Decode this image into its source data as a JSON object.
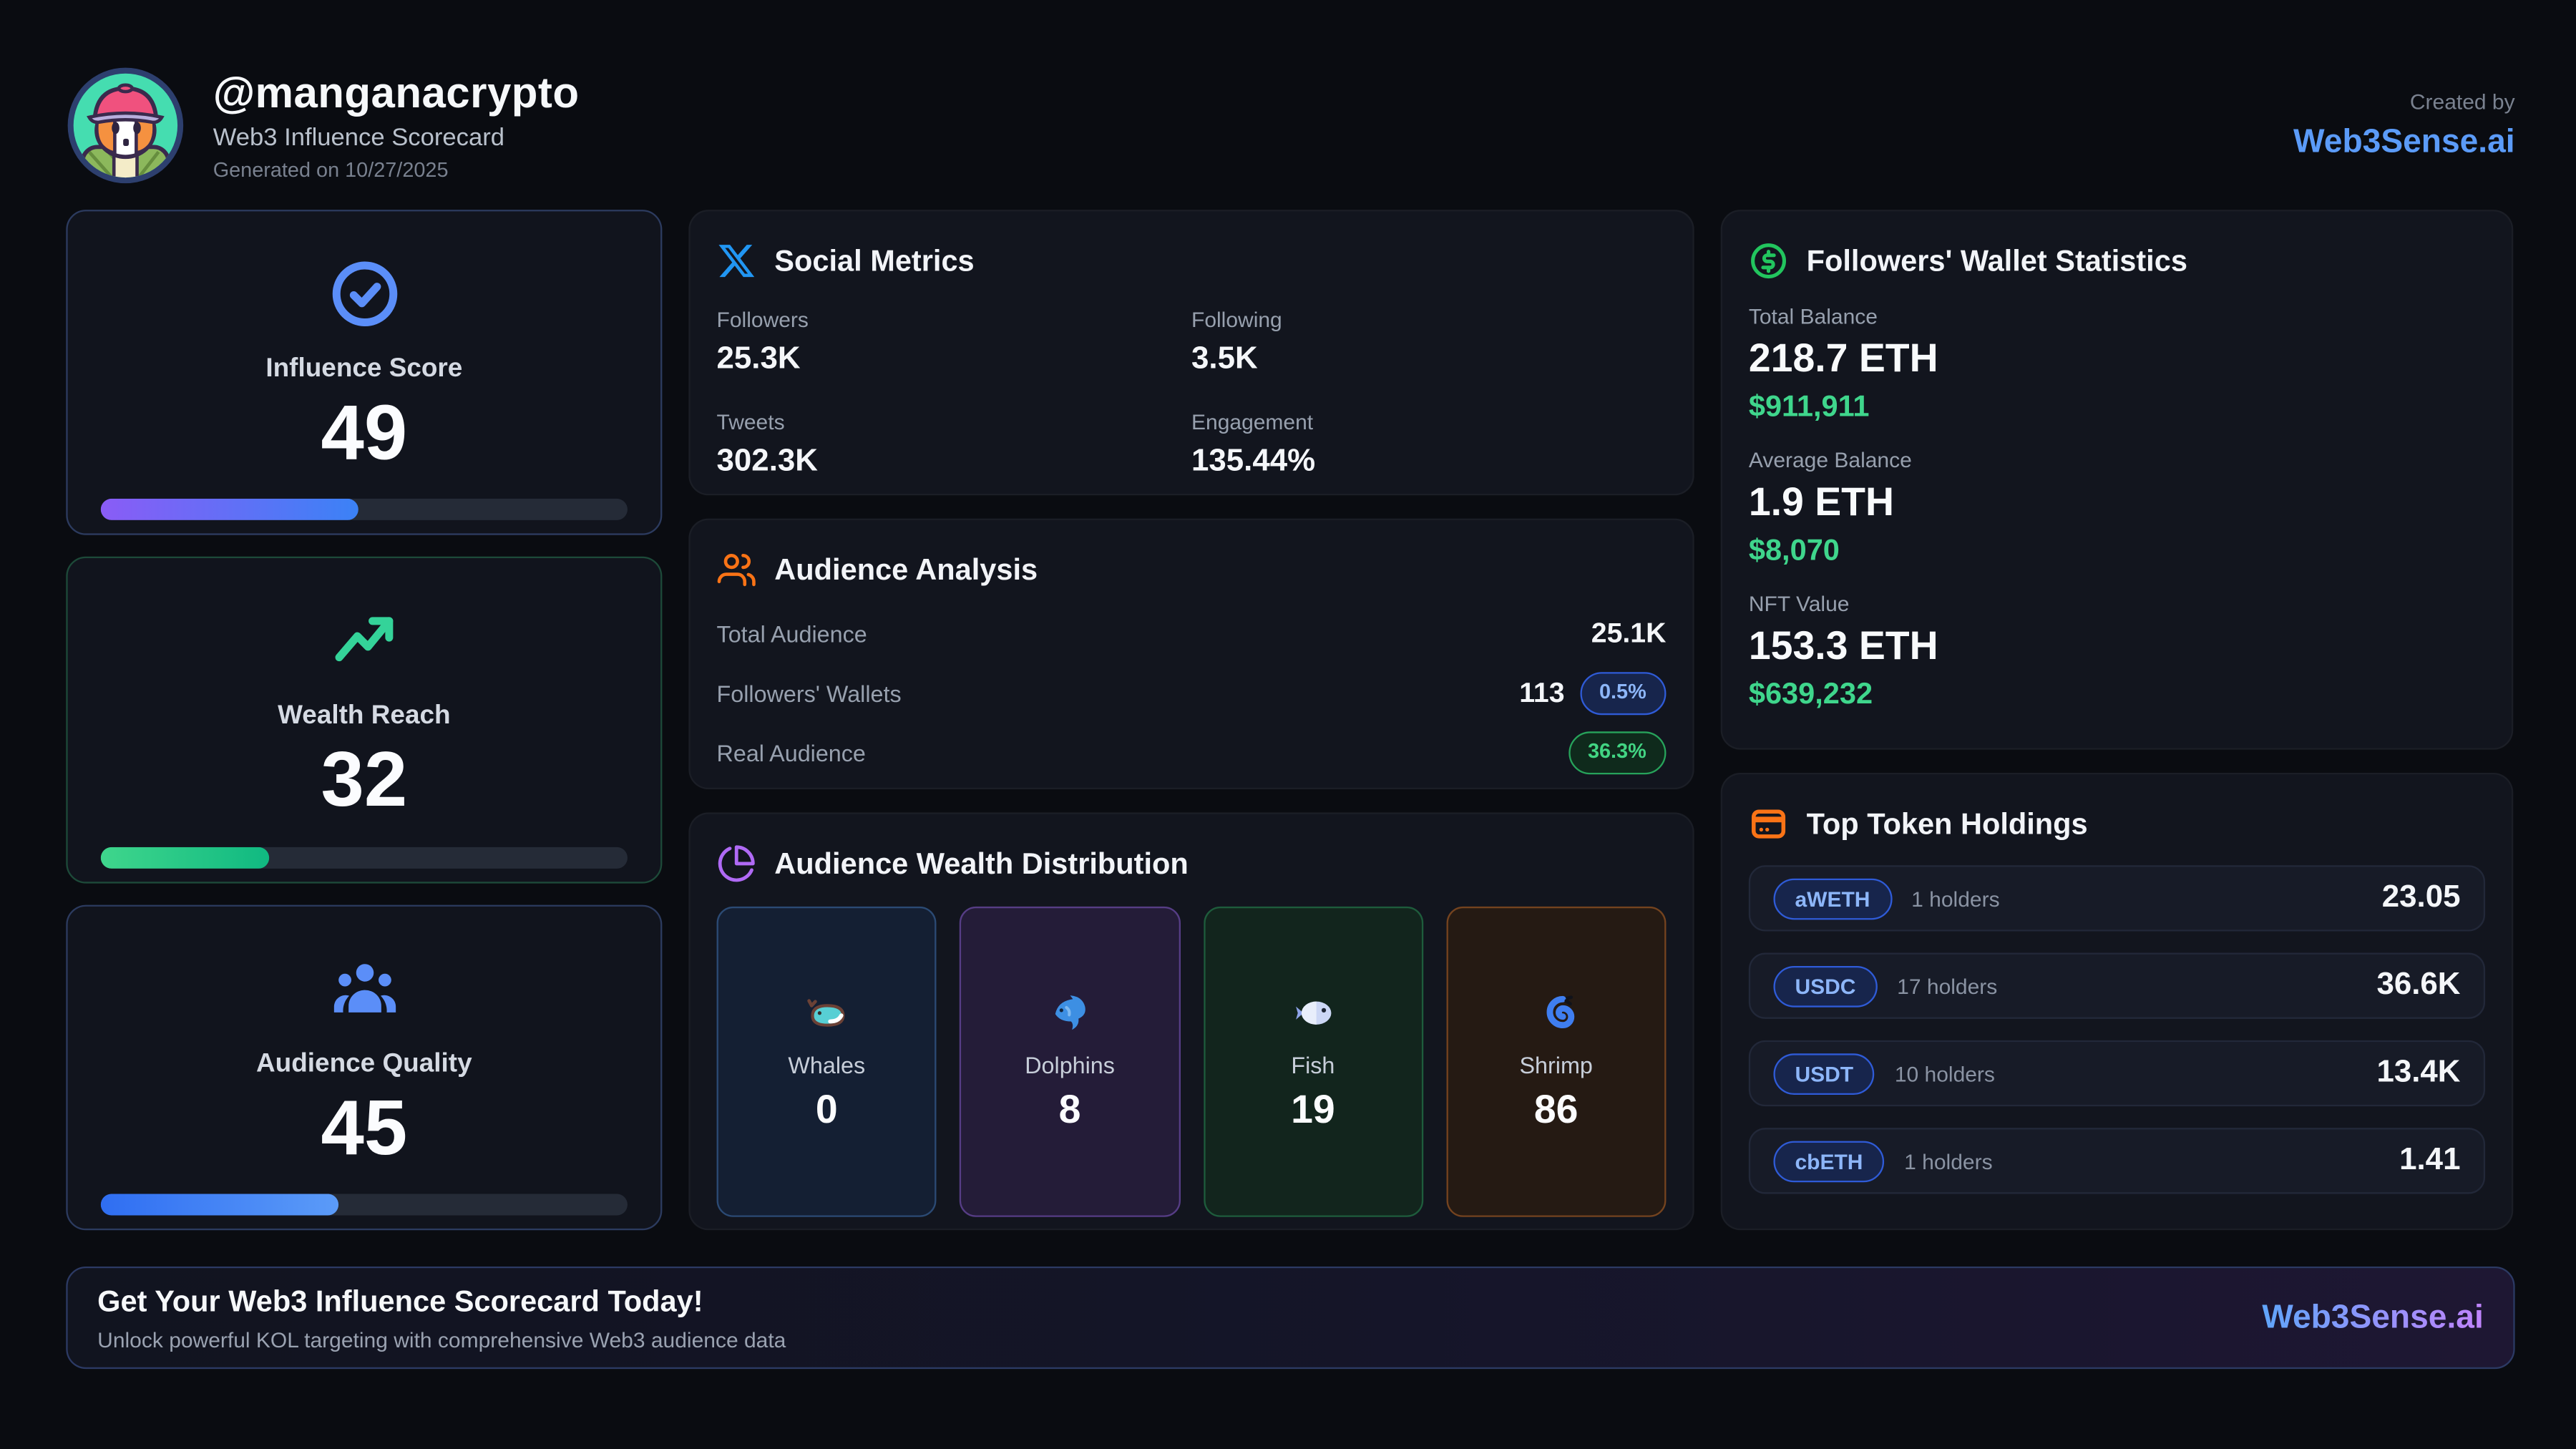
{
  "header": {
    "handle": "@manganacrypto",
    "subtitle": "Web3 Influence Scorecard",
    "generated": "Generated on 10/27/2025",
    "created_by_label": "Created by",
    "brand": "Web3Sense.ai"
  },
  "scores": [
    {
      "label": "Influence Score",
      "value": 49,
      "icon": "check-circle-icon"
    },
    {
      "label": "Wealth Reach",
      "value": 32,
      "icon": "trending-up-icon"
    },
    {
      "label": "Audience Quality",
      "value": 45,
      "icon": "people-icon"
    }
  ],
  "social": {
    "title": "Social Metrics",
    "icon": "x-logo-icon",
    "metrics": [
      {
        "label": "Followers",
        "value": "25.3K"
      },
      {
        "label": "Following",
        "value": "3.5K"
      },
      {
        "label": "Tweets",
        "value": "302.3K"
      },
      {
        "label": "Engagement",
        "value": "135.44%"
      }
    ]
  },
  "audience": {
    "title": "Audience Analysis",
    "icon": "people-group-icon",
    "rows": [
      {
        "label": "Total Audience",
        "value": "25.1K"
      },
      {
        "label": "Followers' Wallets",
        "value": "113",
        "badge": "0.5%"
      },
      {
        "label": "Real Audience",
        "badge": "36.3%"
      }
    ]
  },
  "wealth": {
    "title": "Audience Wealth Distribution",
    "icon": "pie-chart-icon",
    "tiles": [
      {
        "label": "Whales",
        "value": "0",
        "icon": "whale-icon"
      },
      {
        "label": "Dolphins",
        "value": "8",
        "icon": "dolphin-icon"
      },
      {
        "label": "Fish",
        "value": "19",
        "icon": "fish-icon"
      },
      {
        "label": "Shrimp",
        "value": "86",
        "icon": "shrimp-icon"
      }
    ]
  },
  "wallet": {
    "title": "Followers' Wallet Statistics",
    "icon": "dollar-circle-icon",
    "sections": [
      {
        "label": "Total Balance",
        "eth": "218.7 ETH",
        "usd": "$911,911"
      },
      {
        "label": "Average Balance",
        "eth": "1.9 ETH",
        "usd": "$8,070"
      },
      {
        "label": "NFT Value",
        "eth": "153.3 ETH",
        "usd": "$639,232"
      }
    ]
  },
  "tokens": {
    "title": "Top Token Holdings",
    "icon": "credit-card-icon",
    "rows": [
      {
        "symbol": "aWETH",
        "holders": "1 holders",
        "amount": "23.05"
      },
      {
        "symbol": "USDC",
        "holders": "17 holders",
        "amount": "36.6K"
      },
      {
        "symbol": "USDT",
        "holders": "10 holders",
        "amount": "13.4K"
      },
      {
        "symbol": "cbETH",
        "holders": "1 holders",
        "amount": "1.41"
      }
    ]
  },
  "footer": {
    "title": "Get Your Web3 Influence Scorecard Today!",
    "subtitle": "Unlock powerful KOL targeting with comprehensive Web3 audience data",
    "brand": "Web3Sense.ai"
  },
  "colors": {
    "page_bg": "#0a0c11",
    "panel_bg": "#12151e",
    "accent_blue": "#5b9bf8",
    "accent_green": "#22c55e",
    "accent_orange": "#f97316",
    "accent_purple": "#b06af5",
    "money_green": "#3fd68c",
    "badge_blue_text": "#8db6f9",
    "badge_green_text": "#42d583",
    "bar_influence": [
      "#8a5cf6",
      "#3b82f6"
    ],
    "bar_wealth": [
      "#3fd68c",
      "#10b981"
    ],
    "bar_quality": [
      "#2f6ef2",
      "#5b9bf8"
    ]
  }
}
